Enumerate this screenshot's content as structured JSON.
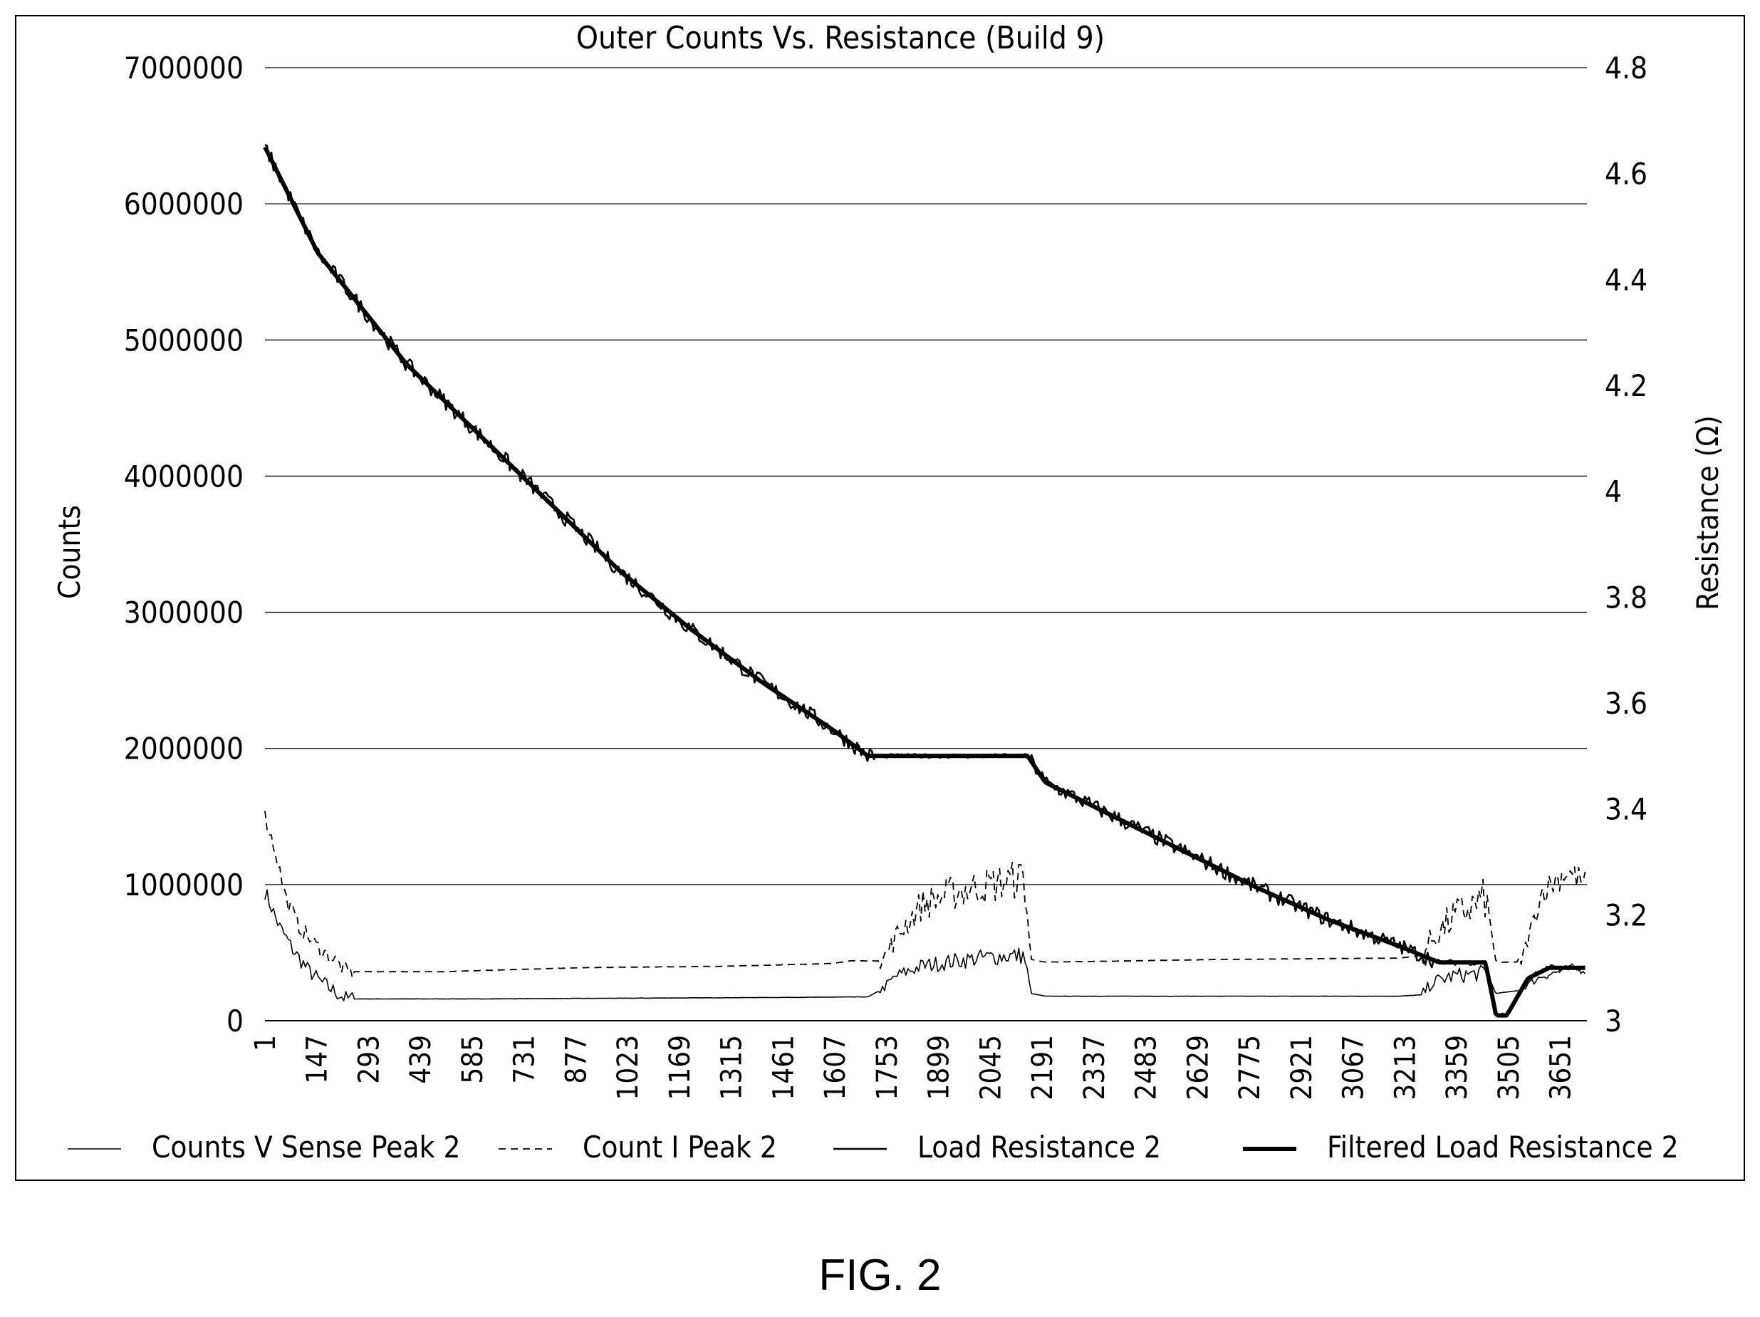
{
  "figure_caption": "FIG. 2",
  "chart_data": {
    "type": "line",
    "title": "Outer Counts Vs. Resistance (Build 9)",
    "ylabel": "Counts",
    "y2label": "Resistance (Ω)",
    "ylim": [
      0,
      7000000
    ],
    "y2lim": [
      3,
      4.8
    ],
    "xlim": [
      1,
      3726
    ],
    "yticks": [
      "0",
      "1000000",
      "2000000",
      "3000000",
      "4000000",
      "5000000",
      "6000000",
      "7000000"
    ],
    "y2ticks": [
      "3",
      "3.2",
      "3.4",
      "3.6",
      "3.8",
      "4",
      "4.2",
      "4.4",
      "4.6",
      "4.8"
    ],
    "xticks": [
      "1",
      "147",
      "293",
      "439",
      "585",
      "731",
      "877",
      "1023",
      "1169",
      "1315",
      "1461",
      "1607",
      "1753",
      "1899",
      "2045",
      "2191",
      "2337",
      "2483",
      "2629",
      "2775",
      "2921",
      "3067",
      "3213",
      "3359",
      "3505",
      "3651"
    ],
    "grid": "horizontal",
    "legend_position": "bottom",
    "series": [
      {
        "name": "Counts V Sense Peak 2",
        "axis": "left",
        "style": "thin-solid",
        "points": [
          [
            1,
            950000
          ],
          [
            40,
            700000
          ],
          [
            80,
            520000
          ],
          [
            120,
            380000
          ],
          [
            160,
            280000
          ],
          [
            200,
            210000
          ],
          [
            230,
            160000
          ],
          [
            600,
            160000
          ],
          [
            1000,
            165000
          ],
          [
            1400,
            170000
          ],
          [
            1700,
            175000
          ],
          [
            1740,
            230000
          ],
          [
            1780,
            330000
          ],
          [
            1850,
            400000
          ],
          [
            1950,
            440000
          ],
          [
            2050,
            470000
          ],
          [
            2140,
            480000
          ],
          [
            2160,
            200000
          ],
          [
            2200,
            180000
          ],
          [
            2700,
            180000
          ],
          [
            3200,
            180000
          ],
          [
            3260,
            190000
          ],
          [
            3290,
            280000
          ],
          [
            3350,
            330000
          ],
          [
            3440,
            350000
          ],
          [
            3470,
            200000
          ],
          [
            3530,
            220000
          ],
          [
            3600,
            330000
          ],
          [
            3680,
            380000
          ],
          [
            3726,
            380000
          ]
        ]
      },
      {
        "name": "Count I Peak 2",
        "axis": "left",
        "style": "dashed",
        "points": [
          [
            1,
            1500000
          ],
          [
            30,
            1250000
          ],
          [
            60,
            900000
          ],
          [
            100,
            680000
          ],
          [
            150,
            540000
          ],
          [
            200,
            440000
          ],
          [
            230,
            360000
          ],
          [
            500,
            360000
          ],
          [
            900,
            390000
          ],
          [
            1300,
            400000
          ],
          [
            1600,
            420000
          ],
          [
            1650,
            440000
          ],
          [
            1740,
            440000
          ],
          [
            1780,
            620000
          ],
          [
            1850,
            850000
          ],
          [
            1950,
            950000
          ],
          [
            2050,
            1000000
          ],
          [
            2140,
            1050000
          ],
          [
            2160,
            450000
          ],
          [
            2200,
            430000
          ],
          [
            2700,
            450000
          ],
          [
            3200,
            460000
          ],
          [
            3260,
            480000
          ],
          [
            3290,
            600000
          ],
          [
            3350,
            760000
          ],
          [
            3440,
            900000
          ],
          [
            3470,
            430000
          ],
          [
            3540,
            430000
          ],
          [
            3600,
            950000
          ],
          [
            3670,
            1100000
          ],
          [
            3726,
            1000000
          ]
        ]
      },
      {
        "name": "Load Resistance 2",
        "axis": "right",
        "style": "solid",
        "points": [
          [
            1,
            4.65
          ],
          [
            150,
            4.45
          ],
          [
            400,
            4.24
          ],
          [
            600,
            4.11
          ],
          [
            800,
            3.98
          ],
          [
            1000,
            3.85
          ],
          [
            1200,
            3.74
          ],
          [
            1400,
            3.64
          ],
          [
            1600,
            3.55
          ],
          [
            1700,
            3.5
          ],
          [
            2150,
            3.5
          ],
          [
            2200,
            3.45
          ],
          [
            2500,
            3.35
          ],
          [
            2800,
            3.25
          ],
          [
            3000,
            3.19
          ],
          [
            3200,
            3.14
          ],
          [
            3310,
            3.11
          ],
          [
            3440,
            3.11
          ],
          [
            3470,
            3.01
          ],
          [
            3500,
            3.01
          ],
          [
            3560,
            3.08
          ],
          [
            3620,
            3.1
          ],
          [
            3700,
            3.1
          ],
          [
            3726,
            3.1
          ]
        ]
      },
      {
        "name": "Filtered Load Resistance 2",
        "axis": "right",
        "style": "thick-solid",
        "points": [
          [
            1,
            4.65
          ],
          [
            150,
            4.45
          ],
          [
            400,
            4.24
          ],
          [
            600,
            4.11
          ],
          [
            800,
            3.98
          ],
          [
            1000,
            3.85
          ],
          [
            1200,
            3.74
          ],
          [
            1400,
            3.64
          ],
          [
            1600,
            3.55
          ],
          [
            1700,
            3.5
          ],
          [
            2150,
            3.5
          ],
          [
            2200,
            3.45
          ],
          [
            2500,
            3.35
          ],
          [
            2800,
            3.25
          ],
          [
            3000,
            3.19
          ],
          [
            3200,
            3.14
          ],
          [
            3310,
            3.11
          ],
          [
            3440,
            3.11
          ],
          [
            3470,
            3.01
          ],
          [
            3500,
            3.01
          ],
          [
            3560,
            3.08
          ],
          [
            3620,
            3.1
          ],
          [
            3700,
            3.1
          ],
          [
            3726,
            3.1
          ]
        ]
      }
    ]
  }
}
